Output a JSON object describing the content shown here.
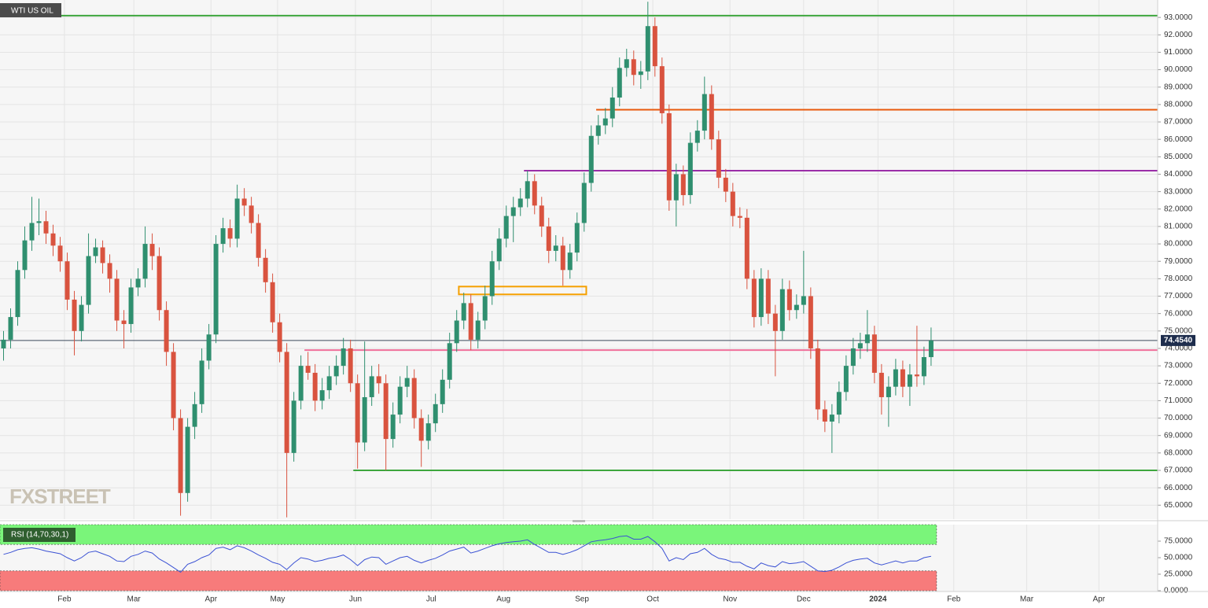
{
  "chart_data": {
    "type": "candlestick",
    "title": "WTI US OIL",
    "watermark": "FXSTREET",
    "up_color": "#2f8f6f",
    "down_color": "#d9533f",
    "grid": true,
    "xlim": [
      -0.5,
      163.0
    ],
    "ylim": [
      64.2,
      94.0
    ],
    "xticks": [
      {
        "value": 8.6,
        "label": "Feb"
      },
      {
        "value": 18.4,
        "label": "Mar"
      },
      {
        "value": 29.3,
        "label": "Apr"
      },
      {
        "value": 38.7,
        "label": "May"
      },
      {
        "value": 49.7,
        "label": "Jun"
      },
      {
        "value": 60.4,
        "label": "Jul"
      },
      {
        "value": 70.6,
        "label": "Aug"
      },
      {
        "value": 81.7,
        "label": "Sep"
      },
      {
        "value": 91.7,
        "label": "Oct"
      },
      {
        "value": 102.6,
        "label": "Nov"
      },
      {
        "value": 113.0,
        "label": "Dec"
      },
      {
        "value": 123.5,
        "label": "2024"
      },
      {
        "value": 134.2,
        "label": "Feb"
      },
      {
        "value": 144.5,
        "label": "Mar"
      },
      {
        "value": 154.7,
        "label": "Apr"
      }
    ],
    "yticks": [
      {
        "value": 65,
        "label": "65.0000"
      },
      {
        "value": 66,
        "label": "66.0000"
      },
      {
        "value": 67,
        "label": "67.0000"
      },
      {
        "value": 68,
        "label": "68.0000"
      },
      {
        "value": 69,
        "label": "69.0000"
      },
      {
        "value": 70,
        "label": "70.0000"
      },
      {
        "value": 71,
        "label": "71.0000"
      },
      {
        "value": 72,
        "label": "72.0000"
      },
      {
        "value": 73,
        "label": "73.0000"
      },
      {
        "value": 74,
        "label": "74.0000"
      },
      {
        "value": 75,
        "label": "75.0000"
      },
      {
        "value": 76,
        "label": "76.0000"
      },
      {
        "value": 77,
        "label": "77.0000"
      },
      {
        "value": 78,
        "label": "78.0000"
      },
      {
        "value": 79,
        "label": "79.0000"
      },
      {
        "value": 80,
        "label": "80.0000"
      },
      {
        "value": 81,
        "label": "81.0000"
      },
      {
        "value": 82,
        "label": "82.0000"
      },
      {
        "value": 83,
        "label": "83.0000"
      },
      {
        "value": 84,
        "label": "84.0000"
      },
      {
        "value": 85,
        "label": "85.0000"
      },
      {
        "value": 86,
        "label": "86.0000"
      },
      {
        "value": 87,
        "label": "87.0000"
      },
      {
        "value": 88,
        "label": "88.0000"
      },
      {
        "value": 89,
        "label": "89.0000"
      },
      {
        "value": 90,
        "label": "90.0000"
      },
      {
        "value": 91,
        "label": "91.0000"
      },
      {
        "value": 92,
        "label": "92.0000"
      },
      {
        "value": 93,
        "label": "93.0000"
      }
    ],
    "last_price": {
      "value": 74.454,
      "label": "74.4540"
    },
    "open": [
      74.0,
      74.5,
      75.8,
      78.5,
      80.2,
      81.2,
      81.3,
      80.6,
      79.9,
      79.0,
      76.8,
      75.0,
      76.5,
      79.3,
      79.8,
      78.9,
      78.0,
      75.6,
      75.4,
      77.5,
      78.0,
      80.0,
      79.3,
      76.2,
      73.8,
      70.0,
      65.7,
      69.5,
      70.8,
      73.3,
      74.8,
      80.0,
      80.9,
      80.3,
      82.6,
      82.2,
      81.2,
      79.2,
      77.8,
      75.5,
      73.8,
      68.0,
      71.0,
      73.0,
      72.6,
      71.0,
      71.6,
      72.4,
      73.0,
      74.0,
      72.0,
      68.6,
      71.2,
      72.4,
      72.0,
      68.8,
      70.2,
      71.8,
      72.3,
      70.0,
      68.7,
      69.7,
      70.8,
      72.2,
      74.3,
      75.6,
      76.6,
      74.5,
      75.6,
      77.0,
      79.0,
      80.3,
      81.6,
      82.1,
      82.6,
      83.6,
      82.2,
      81.0,
      79.6,
      79.9,
      78.5,
      79.5,
      81.2,
      83.5,
      86.2,
      86.8,
      87.2,
      88.4,
      90.1,
      90.6,
      89.7,
      89.9,
      92.5,
      90.2,
      87.5,
      82.5,
      84.0,
      82.8,
      85.8,
      86.5,
      88.6,
      86.0,
      83.8,
      83.0,
      81.6,
      81.5,
      78.0,
      75.8,
      78.0,
      76.0,
      75.0,
      77.4,
      76.2,
      76.5,
      77.0,
      74.0,
      70.5,
      69.8,
      70.2,
      71.5,
      73.0,
      74.0,
      74.3,
      74.8,
      72.6,
      71.2,
      71.8,
      72.8,
      71.8,
      72.5,
      72.4,
      73.5
    ],
    "high": [
      75.0,
      76.3,
      79.0,
      81.0,
      82.7,
      82.6,
      81.9,
      81.1,
      80.4,
      79.5,
      77.3,
      77.0,
      80.6,
      80.3,
      80.2,
      79.4,
      78.5,
      76.2,
      78.0,
      78.6,
      81.0,
      80.6,
      79.8,
      76.7,
      74.3,
      70.5,
      70.0,
      71.5,
      74.0,
      75.4,
      80.5,
      81.5,
      81.4,
      83.4,
      83.2,
      82.7,
      81.7,
      79.7,
      78.3,
      76.0,
      74.3,
      71.5,
      73.6,
      73.8,
      73.1,
      72.3,
      73.0,
      73.6,
      74.6,
      74.5,
      72.5,
      74.4,
      73.0,
      73.1,
      72.5,
      70.9,
      72.4,
      73.0,
      72.8,
      70.5,
      70.2,
      71.4,
      72.8,
      74.9,
      76.2,
      77.2,
      77.1,
      76.1,
      77.6,
      79.6,
      80.9,
      82.2,
      82.7,
      83.2,
      84.2,
      84.0,
      82.7,
      81.5,
      80.5,
      80.4,
      80.0,
      81.8,
      84.1,
      86.8,
      87.4,
      87.8,
      89.0,
      90.7,
      91.2,
      91.1,
      90.5,
      93.9,
      93.0,
      90.7,
      88.0,
      84.6,
      84.5,
      86.4,
      87.1,
      89.6,
      89.1,
      86.5,
      84.3,
      83.5,
      82.1,
      82.0,
      78.5,
      78.6,
      78.5,
      76.5,
      78.0,
      77.9,
      77.1,
      79.6,
      77.5,
      74.5,
      71.0,
      70.8,
      72.1,
      73.6,
      74.6,
      74.9,
      76.2,
      75.3,
      73.1,
      72.4,
      73.4,
      73.3,
      73.1,
      75.3,
      74.1,
      75.2
    ],
    "low": [
      73.3,
      74.0,
      75.3,
      78.0,
      79.6,
      80.5,
      80.0,
      79.3,
      78.4,
      76.2,
      73.6,
      74.4,
      76.0,
      78.9,
      78.3,
      77.2,
      75.0,
      74.0,
      74.9,
      77.0,
      77.5,
      78.5,
      75.6,
      73.0,
      69.3,
      64.4,
      65.2,
      68.8,
      70.3,
      72.8,
      74.3,
      79.5,
      79.8,
      79.8,
      81.6,
      80.6,
      78.7,
      77.2,
      74.9,
      73.2,
      64.3,
      67.5,
      70.5,
      72.2,
      70.4,
      70.5,
      71.1,
      71.9,
      72.5,
      71.5,
      67.1,
      68.1,
      70.7,
      71.4,
      67.0,
      68.3,
      69.7,
      71.2,
      69.4,
      67.2,
      68.2,
      69.2,
      70.3,
      71.7,
      73.8,
      75.1,
      73.9,
      74.0,
      75.1,
      76.5,
      78.5,
      79.8,
      80.1,
      81.6,
      82.1,
      81.7,
      80.4,
      78.9,
      79.0,
      77.6,
      78.0,
      79.0,
      80.7,
      83.0,
      85.7,
      86.3,
      86.7,
      87.9,
      89.6,
      89.1,
      88.9,
      89.4,
      89.6,
      86.9,
      81.9,
      81.0,
      82.2,
      82.3,
      85.3,
      86.0,
      85.4,
      83.2,
      82.4,
      81.0,
      80.9,
      77.4,
      75.2,
      75.3,
      75.4,
      72.4,
      74.5,
      75.6,
      75.7,
      76.0,
      73.4,
      69.9,
      69.2,
      68.0,
      69.7,
      71.0,
      72.5,
      73.4,
      73.8,
      72.0,
      70.2,
      69.5,
      71.3,
      71.2,
      70.7,
      71.8,
      71.9,
      73.0
    ],
    "close": [
      74.5,
      75.8,
      78.5,
      80.2,
      81.2,
      81.3,
      80.6,
      79.9,
      79.0,
      76.8,
      75.0,
      76.5,
      79.3,
      79.8,
      78.9,
      78.0,
      75.6,
      75.4,
      77.5,
      78.0,
      80.0,
      79.3,
      76.2,
      73.8,
      70.0,
      65.7,
      69.5,
      70.8,
      73.3,
      74.8,
      80.0,
      80.9,
      80.3,
      82.6,
      82.2,
      81.2,
      79.2,
      77.8,
      75.5,
      73.8,
      68.0,
      71.0,
      73.0,
      72.6,
      71.0,
      71.6,
      72.4,
      73.0,
      74.0,
      72.0,
      68.6,
      71.2,
      72.4,
      72.0,
      68.8,
      70.2,
      71.8,
      72.3,
      70.0,
      68.7,
      69.7,
      70.8,
      72.2,
      74.3,
      75.6,
      76.6,
      74.5,
      75.6,
      77.0,
      79.0,
      80.3,
      81.6,
      82.1,
      82.6,
      83.6,
      82.2,
      81.0,
      79.6,
      79.9,
      78.5,
      79.5,
      81.2,
      83.5,
      86.2,
      86.8,
      87.2,
      88.4,
      90.1,
      90.6,
      89.7,
      89.9,
      92.5,
      90.2,
      87.5,
      82.5,
      84.0,
      82.8,
      85.8,
      86.5,
      88.6,
      86.0,
      83.8,
      83.0,
      81.6,
      81.5,
      78.0,
      75.8,
      78.0,
      76.0,
      75.0,
      77.4,
      76.2,
      76.5,
      77.0,
      74.0,
      70.5,
      69.8,
      70.2,
      71.5,
      73.0,
      74.0,
      74.3,
      74.8,
      72.6,
      71.2,
      71.8,
      72.8,
      71.8,
      72.5,
      72.4,
      73.5,
      74.454
    ],
    "levels": [
      {
        "value": 93.1,
        "x_start": -0.5,
        "color": "#3ea63e"
      },
      {
        "value": 87.7,
        "x_start": 83.7,
        "color": "#e8590c"
      },
      {
        "value": 84.2,
        "x_start": 73.5,
        "color": "#9b2ea8"
      },
      {
        "value": 73.9,
        "x_start": 42.5,
        "color": "#f0709a"
      },
      {
        "value": 67.0,
        "x_start": 49.4,
        "color": "#3ea63e"
      }
    ],
    "zones": [
      {
        "low": 77.1,
        "high": 77.55,
        "x_start": 64.3,
        "x_end": 82.3,
        "color": "#f5a000"
      }
    ],
    "rsi": {
      "label": "RSI (14,70,30,1)",
      "color": "#3b52d4",
      "upper_band": 70,
      "lower_band": 30,
      "ylim": [
        0,
        100
      ],
      "yticks": [
        {
          "value": 0,
          "label": "0.0000"
        },
        {
          "value": 25,
          "label": "25.0000"
        },
        {
          "value": 50,
          "label": "50.0000"
        },
        {
          "value": 75,
          "label": "75.0000"
        }
      ],
      "values": [
        55,
        58,
        62,
        64,
        65,
        63,
        60,
        58,
        56,
        50,
        45,
        50,
        58,
        60,
        56,
        52,
        45,
        44,
        52,
        55,
        60,
        57,
        48,
        42,
        35,
        28,
        40,
        44,
        50,
        54,
        64,
        66,
        62,
        68,
        65,
        60,
        54,
        49,
        43,
        40,
        32,
        42,
        50,
        48,
        44,
        46,
        49,
        51,
        54,
        47,
        38,
        47,
        51,
        50,
        40,
        45,
        50,
        52,
        46,
        42,
        46,
        49,
        54,
        60,
        63,
        66,
        57,
        60,
        64,
        68,
        71,
        73,
        74,
        75,
        77,
        70,
        64,
        58,
        58,
        55,
        58,
        62,
        68,
        74,
        76,
        77,
        79,
        82,
        83,
        78,
        78,
        82,
        74,
        64,
        45,
        50,
        47,
        56,
        58,
        64,
        55,
        49,
        47,
        43,
        43,
        37,
        33,
        42,
        38,
        36,
        44,
        41,
        42,
        44,
        37,
        30,
        29,
        31,
        36,
        42,
        46,
        48,
        49,
        42,
        39,
        42,
        45,
        42,
        45,
        45,
        50,
        52
      ]
    }
  }
}
